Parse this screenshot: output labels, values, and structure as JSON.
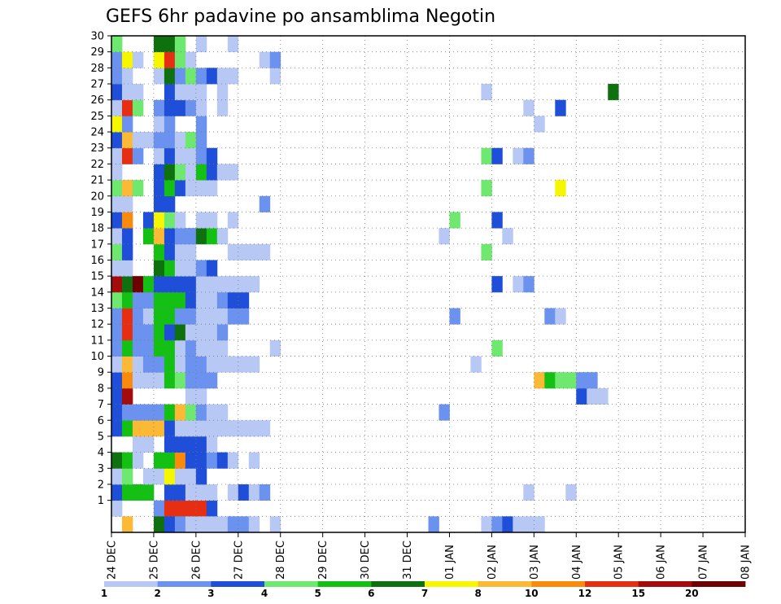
{
  "chart_data": {
    "type": "heatmap",
    "title": "GEFS 6hr padavine po ansamblima Negotin",
    "members": [
      "1",
      "2",
      "3",
      "4",
      "5",
      "6",
      "7",
      "8",
      "9",
      "10",
      "11",
      "12",
      "13",
      "14",
      "15",
      "16",
      "17",
      "18",
      "19",
      "20",
      "21",
      "22",
      "23",
      "24",
      "25",
      "26",
      "27",
      "28",
      "29",
      "30"
    ],
    "x_ticks": [
      "24 DEC",
      "25 DEC",
      "26 DEC",
      "27 DEC",
      "28 DEC",
      "29 DEC",
      "30 DEC",
      "31 DEC",
      "01 JAN",
      "02 JAN",
      "03 JAN",
      "04 JAN",
      "05 JAN",
      "06 JAN",
      "07 JAN",
      "08 JAN"
    ],
    "time_steps_per_day": 4,
    "colorbar": {
      "levels": [
        "1",
        "2",
        "3",
        "4",
        "5",
        "6",
        "7",
        "8",
        "10",
        "12",
        "15",
        "20"
      ],
      "colors": [
        "#b7c8f5",
        "#6b92ee",
        "#1f4ed8",
        "#6ee86e",
        "#15c015",
        "#0e700e",
        "#f6f600",
        "#fbb935",
        "#f98a0b",
        "#e52e12",
        "#a40c0c",
        "#6e0000"
      ]
    },
    "cells": {
      "1": {
        "0": 1,
        "1": 0,
        "2": 0,
        "3": 0,
        "4": 2,
        "5": 10,
        "6": 10,
        "7": 10,
        "8": 10,
        "9": 3
      },
      "2": {
        "0": 3,
        "1": 5,
        "2": 5,
        "3": 5,
        "4": 0,
        "5": 3,
        "6": 3,
        "7": 1,
        "8": 1,
        "9": 1,
        "10": 0,
        "11": 1,
        "12": 3,
        "13": 1,
        "14": 2,
        "39": 1,
        "43": 1
      },
      "3": {
        "0": 1,
        "1": 4,
        "2": 0,
        "3": 1,
        "4": 1,
        "5": 7,
        "6": 1,
        "7": 1,
        "8": 3
      },
      "4": {
        "0": 6,
        "1": 5,
        "2": 1,
        "3": 0,
        "4": 5,
        "5": 5,
        "6": 9,
        "7": 3,
        "8": 3,
        "9": 2,
        "10": 3,
        "11": 1,
        "12": 0,
        "13": 1
      },
      "5": {
        "0": 0,
        "1": 0,
        "2": 1,
        "3": 1,
        "4": 0,
        "5": 3,
        "6": 3,
        "7": 3,
        "8": 3,
        "9": 1
      },
      "6": {
        "0": 3,
        "1": 5,
        "2": 8,
        "3": 8,
        "4": 8,
        "5": 3,
        "6": 1,
        "7": 1,
        "8": 1,
        "9": 1,
        "10": 1,
        "11": 1,
        "12": 1,
        "13": 1,
        "14": 1
      },
      "7": {
        "0": 3,
        "1": 2,
        "2": 2,
        "3": 2,
        "4": 2,
        "5": 5,
        "6": 8,
        "7": 4,
        "8": 2,
        "9": 1,
        "10": 1,
        "31": 2
      },
      "8": {
        "0": 3,
        "1": 11,
        "2": 0,
        "3": 0,
        "4": 0,
        "5": 0,
        "6": 0,
        "7": 1,
        "8": 1,
        "44": 3,
        "45": 1,
        "46": 1
      },
      "9": {
        "0": 3,
        "1": 9,
        "2": 1,
        "3": 1,
        "4": 1,
        "5": 5,
        "6": 4,
        "7": 2,
        "8": 2,
        "9": 2,
        "40": 8,
        "41": 5,
        "42": 4,
        "43": 4,
        "44": 2,
        "45": 2
      },
      "10": {
        "0": 1,
        "1": 8,
        "2": 1,
        "3": 2,
        "4": 2,
        "5": 5,
        "6": 1,
        "7": 2,
        "8": 2,
        "9": 1,
        "10": 1,
        "11": 1,
        "12": 1,
        "13": 1,
        "34": 1
      },
      "11": {
        "0": 2,
        "1": 5,
        "2": 2,
        "3": 2,
        "4": 5,
        "5": 5,
        "6": 1,
        "7": 2,
        "8": 1,
        "9": 1,
        "10": 1,
        "15": 1,
        "36": 4
      },
      "12": {
        "0": 2,
        "1": 10,
        "2": 2,
        "3": 2,
        "4": 5,
        "5": 3,
        "6": 6,
        "7": 1,
        "8": 1,
        "9": 1,
        "10": 2
      },
      "13": {
        "0": 2,
        "1": 10,
        "2": 2,
        "3": 1,
        "4": 5,
        "5": 5,
        "6": 2,
        "7": 2,
        "8": 1,
        "9": 1,
        "10": 1,
        "11": 2,
        "12": 2,
        "32": 2,
        "41": 2,
        "42": 1
      },
      "14": {
        "0": 4,
        "1": 5,
        "2": 2,
        "3": 2,
        "4": 5,
        "5": 5,
        "6": 5,
        "7": 3,
        "8": 1,
        "9": 1,
        "10": 2,
        "11": 3,
        "12": 3
      },
      "15": {
        "0": 11,
        "1": 6,
        "2": 12,
        "3": 5,
        "4": 3,
        "5": 3,
        "6": 3,
        "7": 3,
        "8": 1,
        "9": 1,
        "10": 1,
        "11": 1,
        "12": 1,
        "13": 1,
        "36": 3,
        "38": 1,
        "39": 2
      },
      "16": {
        "0": 1,
        "1": 1,
        "2": 0,
        "3": 0,
        "4": 6,
        "5": 5,
        "6": 1,
        "7": 1,
        "8": 2,
        "9": 3
      },
      "17": {
        "0": 4,
        "1": 3,
        "2": 0,
        "3": 0,
        "4": 5,
        "5": 3,
        "6": 1,
        "7": 1,
        "8": 0,
        "9": 0,
        "10": 0,
        "11": 1,
        "12": 1,
        "13": 1,
        "14": 1,
        "35": 4
      },
      "18": {
        "0": 1,
        "1": 3,
        "2": 0,
        "3": 5,
        "4": 8,
        "5": 3,
        "6": 2,
        "7": 2,
        "8": 6,
        "9": 5,
        "10": 1,
        "31": 1,
        "37": 1
      },
      "19": {
        "0": 3,
        "1": 9,
        "2": 0,
        "3": 3,
        "4": 7,
        "5": 4,
        "6": 1,
        "7": 0,
        "8": 1,
        "9": 1,
        "10": 0,
        "11": 1,
        "32": 4,
        "36": 3
      },
      "20": {
        "0": 1,
        "1": 1,
        "2": 0,
        "3": 0,
        "4": 3,
        "5": 3,
        "6": 0,
        "7": 0,
        "8": 0,
        "9": 0,
        "10": 0,
        "11": 0,
        "12": 0,
        "13": 0,
        "14": 2
      },
      "21": {
        "0": 4,
        "1": 8,
        "2": 4,
        "3": 0,
        "4": 3,
        "5": 5,
        "6": 3,
        "7": 1,
        "8": 1,
        "9": 1,
        "35": 4,
        "42": 7
      },
      "22": {
        "0": 1,
        "1": 0,
        "2": 0,
        "3": 0,
        "4": 3,
        "5": 6,
        "6": 4,
        "7": 1,
        "8": 5,
        "9": 3,
        "10": 1,
        "11": 1
      },
      "23": {
        "0": 1,
        "1": 10,
        "2": 2,
        "3": 0,
        "4": 1,
        "5": 3,
        "6": 1,
        "7": 1,
        "8": 2,
        "9": 3,
        "35": 4,
        "36": 3,
        "37": 0,
        "38": 1,
        "39": 2
      },
      "24": {
        "0": 3,
        "1": 8,
        "2": 1,
        "3": 1,
        "4": 2,
        "5": 2,
        "6": 1,
        "7": 4,
        "8": 2
      },
      "25": {
        "0": 7,
        "1": 2,
        "2": 0,
        "3": 0,
        "4": 1,
        "5": 2,
        "6": 0,
        "7": 0,
        "8": 2,
        "40": 1
      },
      "26": {
        "0": 1,
        "1": 10,
        "2": 4,
        "3": 0,
        "4": 2,
        "5": 3,
        "6": 3,
        "7": 2,
        "8": 1,
        "9": 0,
        "10": 1,
        "39": 1,
        "42": 3
      },
      "27": {
        "0": 3,
        "1": 1,
        "2": 1,
        "3": 0,
        "4": 0,
        "5": 3,
        "6": 1,
        "7": 1,
        "8": 1,
        "9": 0,
        "10": 1,
        "35": 1,
        "47": 6
      },
      "28": {
        "0": 2,
        "1": 1,
        "2": 0,
        "3": 0,
        "4": 1,
        "5": 6,
        "6": 2,
        "7": 4,
        "8": 2,
        "9": 3,
        "10": 1,
        "11": 1,
        "15": 1
      },
      "29": {
        "0": 2,
        "1": 7,
        "2": 1,
        "3": 0,
        "4": 7,
        "5": 10,
        "6": 4,
        "7": 1,
        "8": 0,
        "9": 0,
        "10": 0,
        "11": 0,
        "12": 0,
        "13": 0,
        "14": 1,
        "15": 2
      },
      "30": {
        "0": 4,
        "1": 0,
        "2": 0,
        "3": 0,
        "4": 6,
        "5": 6,
        "6": 4,
        "7": 0,
        "8": 1,
        "9": 0,
        "10": 0,
        "11": 1
      }
    },
    "bottom_row": {
      "1": 8,
      "4": 6,
      "5": 3,
      "6": 2,
      "7": 1,
      "8": 1,
      "9": 1,
      "10": 1,
      "11": 2,
      "12": 2,
      "13": 1,
      "15": 1,
      "30": 2,
      "35": 1,
      "36": 2,
      "37": 3,
      "38": 1,
      "39": 1,
      "40": 1
    },
    "grid": "dotted"
  }
}
